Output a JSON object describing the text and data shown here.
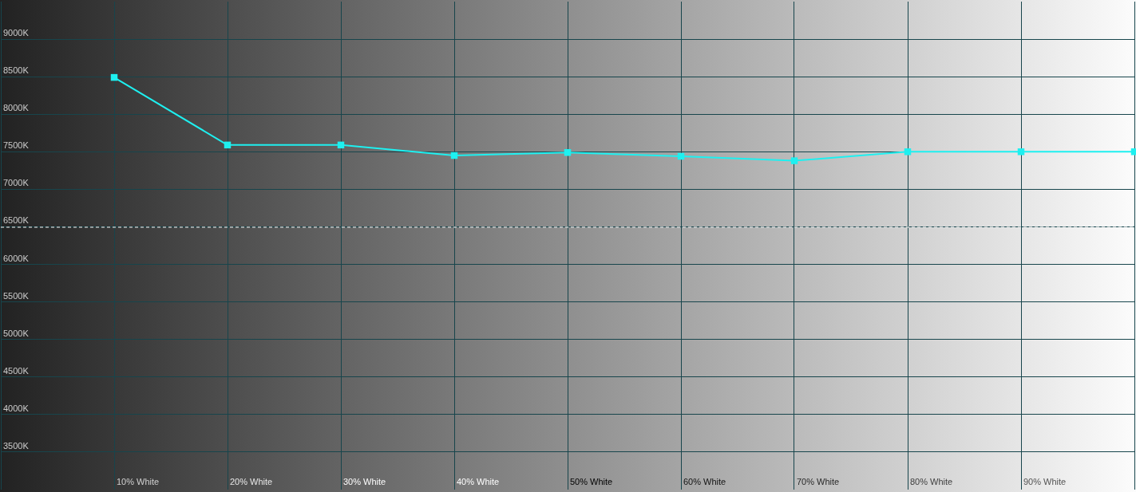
{
  "chart_data": {
    "type": "line",
    "categories": [
      null,
      "10% White",
      "20% White",
      "30% White",
      "40% White",
      "50% White",
      "60% White",
      "70% White",
      "80% White",
      "90% White",
      null
    ],
    "series": [
      {
        "color": "#1ef0f0",
        "values": [
          null,
          8490,
          7590,
          7590,
          7450,
          7490,
          7440,
          7380,
          7500,
          7500,
          7500
        ]
      }
    ],
    "ylim": [
      3000,
      9500
    ],
    "yticks": [
      {
        "value": 3500,
        "label": "3500K"
      },
      {
        "value": 4000,
        "label": "4000K"
      },
      {
        "value": 4500,
        "label": "4500K"
      },
      {
        "value": 5000,
        "label": "5000K"
      },
      {
        "value": 5500,
        "label": "5500K"
      },
      {
        "value": 6000,
        "label": "6000K"
      },
      {
        "value": 6500,
        "label": "6500K"
      },
      {
        "value": 7000,
        "label": "7000K"
      },
      {
        "value": 7500,
        "label": "7500K"
      },
      {
        "value": 8000,
        "label": "8000K"
      },
      {
        "value": 8500,
        "label": "8500K"
      },
      {
        "value": 9000,
        "label": "9000K"
      }
    ],
    "grid": true,
    "marker": "square",
    "line_style": "solid",
    "ref_lines": [
      {
        "axis": "y",
        "value": 6500,
        "color": "#ffffff",
        "line_style": "dashed"
      }
    ]
  }
}
